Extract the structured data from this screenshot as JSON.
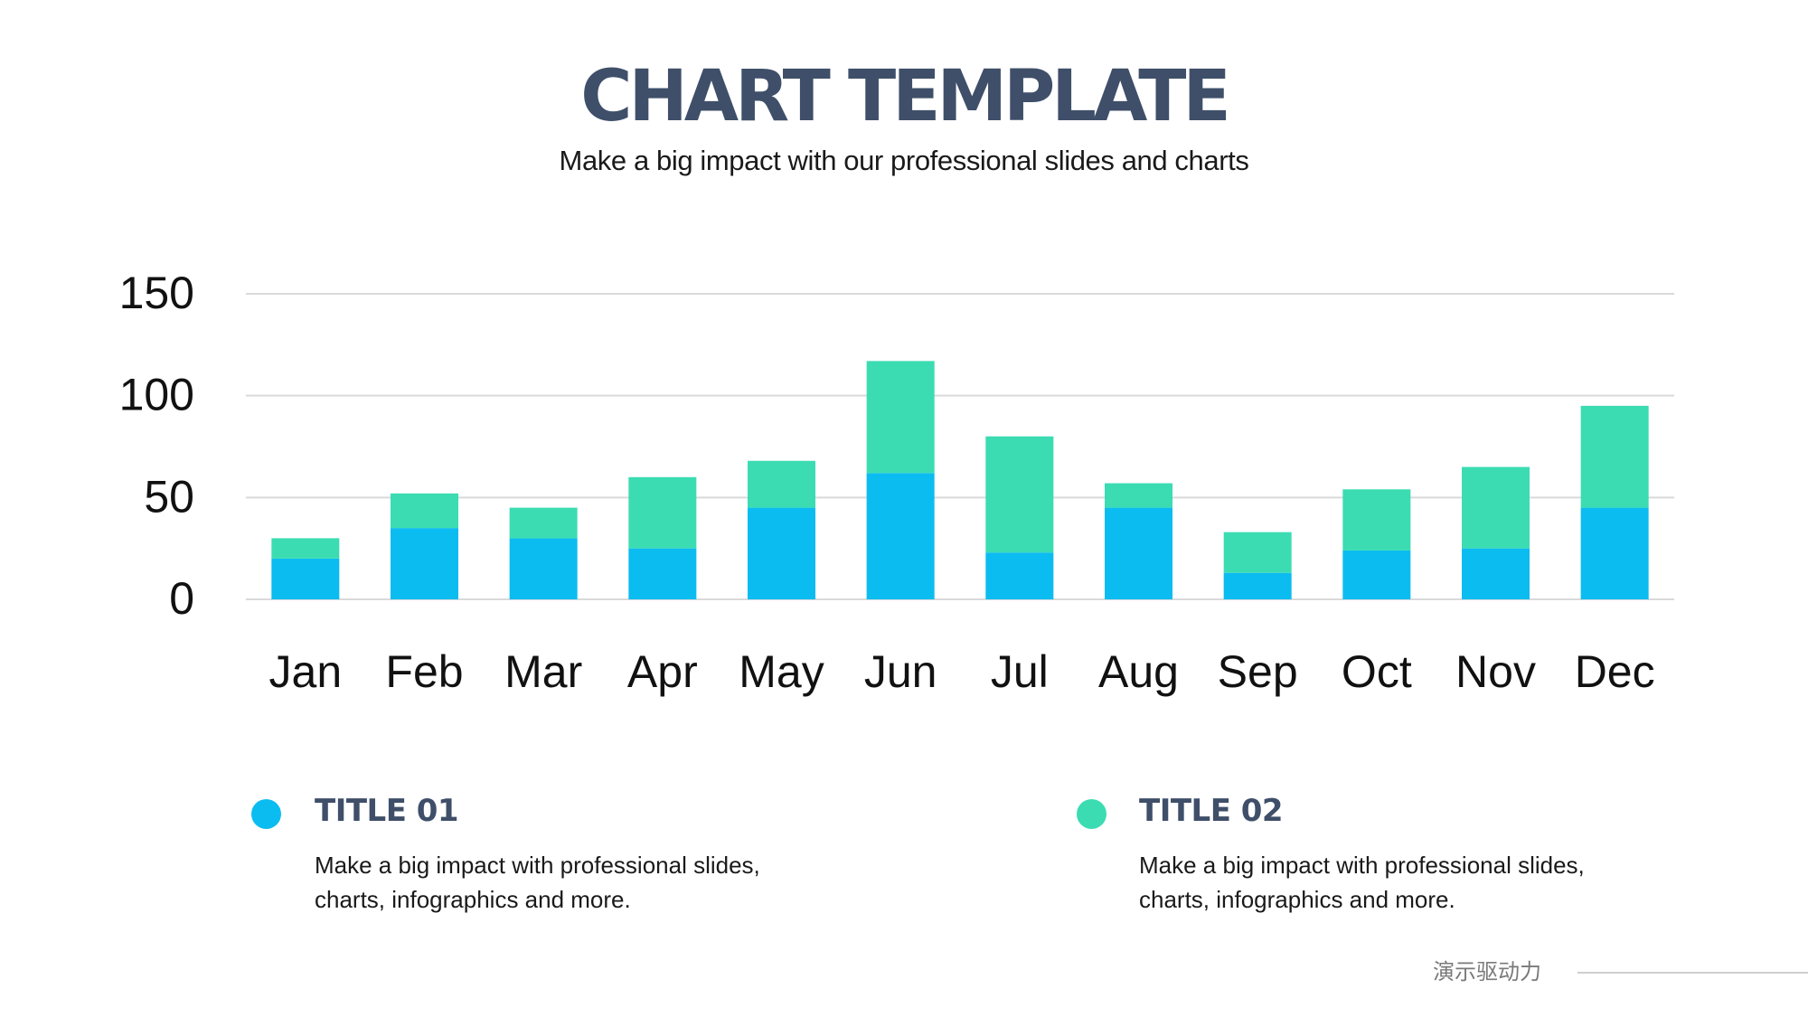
{
  "header": {
    "title": "CHART TEMPLATE",
    "subtitle": "Make a big impact with our professional slides and charts"
  },
  "colors": {
    "series1": "#0bbcf0",
    "series2": "#3bdcb2",
    "grid": "#d9d9d9",
    "text_dark": "#3f4f69"
  },
  "chart_data": {
    "type": "bar",
    "stacked": true,
    "categories": [
      "Jan",
      "Feb",
      "Mar",
      "Apr",
      "May",
      "Jun",
      "Jul",
      "Aug",
      "Sep",
      "Oct",
      "Nov",
      "Dec"
    ],
    "series": [
      {
        "name": "TITLE 01",
        "values": [
          20,
          35,
          30,
          25,
          45,
          62,
          23,
          45,
          13,
          24,
          25,
          45
        ]
      },
      {
        "name": "TITLE 02",
        "values": [
          10,
          17,
          15,
          35,
          23,
          55,
          57,
          12,
          20,
          30,
          40,
          50
        ]
      }
    ],
    "yticks": [
      "0",
      "50",
      "100",
      "150"
    ],
    "ylim": [
      0,
      150
    ],
    "grid": true,
    "title": "",
    "xlabel": "",
    "ylabel": ""
  },
  "legend": [
    {
      "title": "TITLE 01",
      "text": "Make a big impact with professional slides, charts, infographics and more."
    },
    {
      "title": "TITLE 02",
      "text": "Make a big impact with professional slides, charts, infographics and more."
    }
  ],
  "footer": {
    "brand": "演示驱动力"
  }
}
